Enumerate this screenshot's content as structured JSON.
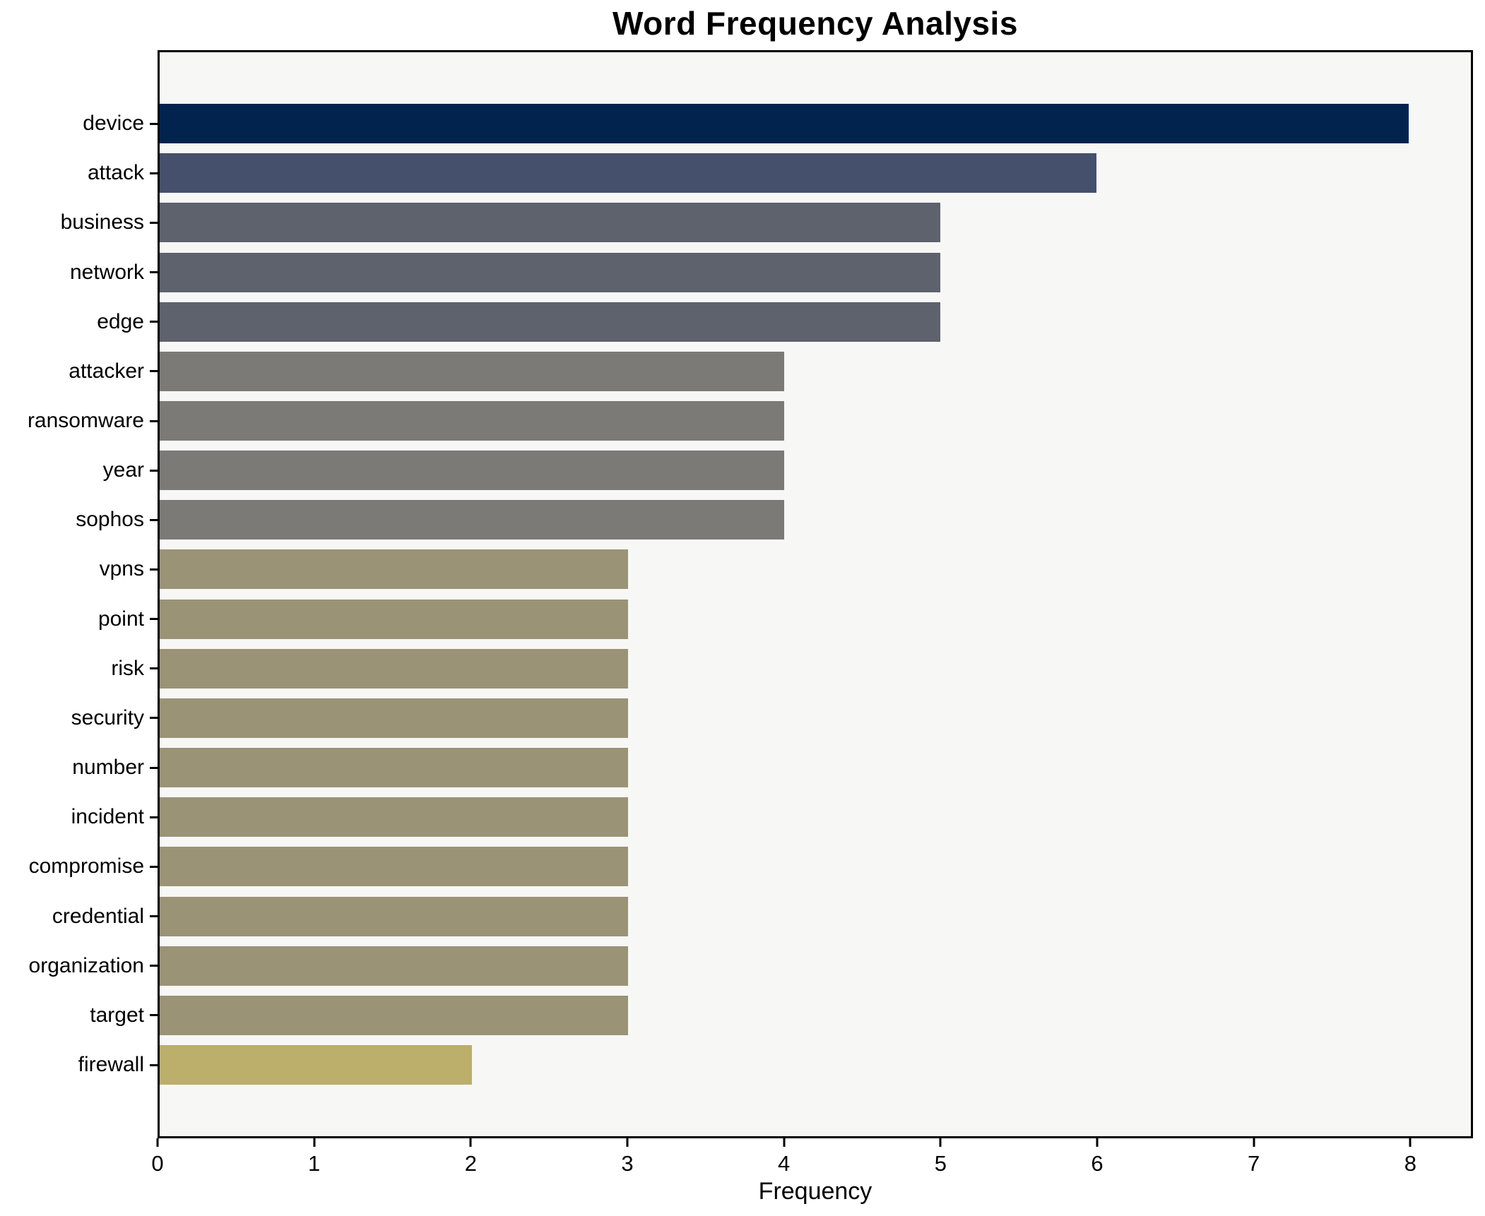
{
  "page": {
    "background": "#ffffff"
  },
  "chart_data": {
    "type": "bar",
    "orientation": "horizontal",
    "title": "Word Frequency Analysis",
    "xlabel": "Frequency",
    "ylabel": "",
    "categories": [
      "device",
      "attack",
      "business",
      "network",
      "edge",
      "attacker",
      "ransomware",
      "year",
      "sophos",
      "vpns",
      "point",
      "risk",
      "security",
      "number",
      "incident",
      "compromise",
      "credential",
      "organization",
      "target",
      "firewall"
    ],
    "values": [
      8,
      6,
      5,
      5,
      5,
      4,
      4,
      4,
      4,
      3,
      3,
      3,
      3,
      3,
      3,
      3,
      3,
      3,
      3,
      2
    ],
    "bar_colors": [
      "#02234e",
      "#44506c",
      "#5e626d",
      "#5e626d",
      "#5e626d",
      "#7b7a76",
      "#7b7a76",
      "#7b7a76",
      "#7b7a76",
      "#9a9376",
      "#9a9376",
      "#9a9376",
      "#9a9376",
      "#9a9376",
      "#9a9376",
      "#9a9376",
      "#9a9376",
      "#9a9376",
      "#9a9376",
      "#bcae6b"
    ],
    "xticks": [
      0,
      1,
      2,
      3,
      4,
      5,
      6,
      7,
      8
    ],
    "xlim": [
      0,
      8.4
    ],
    "grid": false,
    "legend_position": "none",
    "plot_background": "#f7f7f6",
    "spine_color": "#000000",
    "text_color": "#000000"
  }
}
